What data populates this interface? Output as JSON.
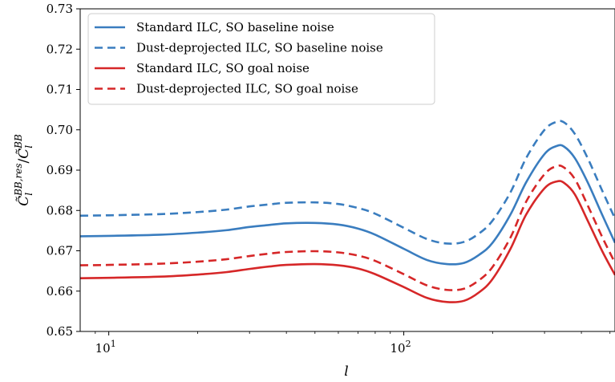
{
  "chart_data": {
    "type": "line",
    "title": "",
    "xlabel": "l",
    "ylabel": "C̃_l^{BB,res}/C̃_l^{BB}",
    "xscale": "log",
    "xlim": [
      8,
      520
    ],
    "ylim": [
      0.65,
      0.73
    ],
    "grid": false,
    "legend_position": "top-left",
    "yticks": [
      "0.65",
      "0.66",
      "0.67",
      "0.68",
      "0.69",
      "0.70",
      "0.71",
      "0.72",
      "0.73"
    ],
    "xticks": [
      {
        "value": 10,
        "label": "10",
        "sup": "1"
      },
      {
        "value": 100,
        "label": "10",
        "sup": "2"
      }
    ],
    "x": [
      8,
      10,
      15,
      20,
      25,
      30,
      35,
      40,
      50,
      60,
      70,
      80,
      100,
      120,
      140,
      160,
      180,
      200,
      230,
      260,
      300,
      330,
      350,
      380,
      420,
      470,
      520
    ],
    "series": [
      {
        "name": "Standard ILC, SO baseline noise",
        "color": "#3a7dbf",
        "dash": "solid",
        "values": [
          0.6736,
          0.6737,
          0.674,
          0.6745,
          0.6751,
          0.6759,
          0.6764,
          0.6768,
          0.6769,
          0.6765,
          0.6755,
          0.674,
          0.6705,
          0.6677,
          0.6667,
          0.667,
          0.669,
          0.672,
          0.679,
          0.687,
          0.694,
          0.696,
          0.6958,
          0.693,
          0.687,
          0.679,
          0.672
        ]
      },
      {
        "name": "Dust-deprojected ILC, SO baseline noise",
        "color": "#3a7dbf",
        "dash": "dashed",
        "values": [
          0.6787,
          0.6788,
          0.6791,
          0.6796,
          0.6802,
          0.681,
          0.6815,
          0.6819,
          0.682,
          0.6816,
          0.6806,
          0.6792,
          0.6757,
          0.6729,
          0.6718,
          0.6722,
          0.6743,
          0.6775,
          0.6845,
          0.693,
          0.7,
          0.702,
          0.7018,
          0.699,
          0.693,
          0.685,
          0.678
        ]
      },
      {
        "name": "Standard ILC, SO goal noise",
        "color": "#d62728",
        "dash": "solid",
        "values": [
          0.6632,
          0.6633,
          0.6636,
          0.6641,
          0.6647,
          0.6655,
          0.6661,
          0.6665,
          0.6667,
          0.6664,
          0.6656,
          0.6642,
          0.661,
          0.6583,
          0.6573,
          0.6576,
          0.6597,
          0.663,
          0.6705,
          0.679,
          0.6855,
          0.6872,
          0.6868,
          0.684,
          0.6775,
          0.67,
          0.664
        ]
      },
      {
        "name": "Dust-deprojected ILC, SO goal noise",
        "color": "#d62728",
        "dash": "dashed",
        "values": [
          0.6664,
          0.6665,
          0.6668,
          0.6673,
          0.6679,
          0.6687,
          0.6693,
          0.6697,
          0.6699,
          0.6696,
          0.6688,
          0.6675,
          0.6642,
          0.6614,
          0.6603,
          0.6606,
          0.6627,
          0.666,
          0.6733,
          0.6822,
          0.689,
          0.691,
          0.6906,
          0.6878,
          0.6813,
          0.6735,
          0.667
        ]
      }
    ]
  }
}
